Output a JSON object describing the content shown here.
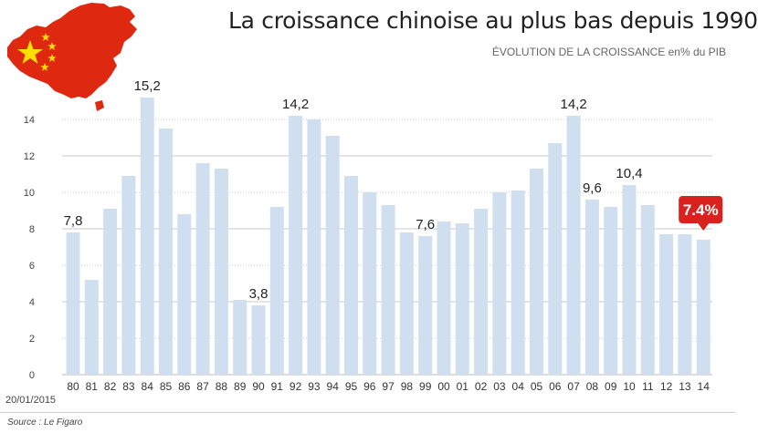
{
  "chart_data": {
    "type": "bar",
    "title": "La croissance chinoise au plus bas depuis 1990",
    "subtitle": "ÉVOLUTION DE LA CROISSANCE en% du PIB",
    "categories": [
      "80",
      "81",
      "82",
      "83",
      "84",
      "85",
      "86",
      "87",
      "88",
      "89",
      "90",
      "91",
      "92",
      "93",
      "94",
      "95",
      "96",
      "97",
      "98",
      "99",
      "00",
      "01",
      "02",
      "03",
      "04",
      "05",
      "06",
      "07",
      "08",
      "09",
      "10",
      "11",
      "12",
      "13",
      "14"
    ],
    "values": [
      7.8,
      5.2,
      9.1,
      10.9,
      15.2,
      13.5,
      8.8,
      11.6,
      11.3,
      4.1,
      3.8,
      9.2,
      14.2,
      14.0,
      13.1,
      10.9,
      10.0,
      9.3,
      7.8,
      7.6,
      8.4,
      8.3,
      9.1,
      10.0,
      10.1,
      11.3,
      12.7,
      14.2,
      9.6,
      9.2,
      10.4,
      9.3,
      7.7,
      7.7,
      7.4
    ],
    "data_labels": [
      {
        "category": "80",
        "text": "7,8"
      },
      {
        "category": "84",
        "text": "15,2"
      },
      {
        "category": "90",
        "text": "3,8"
      },
      {
        "category": "92",
        "text": "14,2"
      },
      {
        "category": "99",
        "text": "7,6"
      },
      {
        "category": "07",
        "text": "14,2"
      },
      {
        "category": "08",
        "text": "9,6"
      },
      {
        "category": "10",
        "text": "10,4"
      }
    ],
    "highlight": {
      "category": "14",
      "text": "7.4%",
      "color": "#d9211e"
    },
    "yticks": [
      0,
      2,
      4,
      6,
      8,
      10,
      12,
      14
    ],
    "ylim": [
      0,
      15.2
    ],
    "grid": true,
    "bar_color": "#cfdff0"
  },
  "date": "20/01/2015",
  "source": "Source : Le Figaro",
  "colors": {
    "flag_red": "#de2910",
    "flag_star": "#ffde00",
    "text": "#222222"
  },
  "icons": {
    "flag_map": "china-flag-map-icon"
  }
}
